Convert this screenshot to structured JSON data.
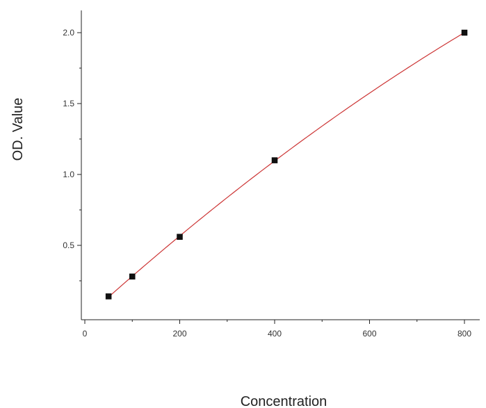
{
  "chart_data": {
    "type": "line",
    "title": "",
    "xlabel": "Concentration",
    "ylabel": "OD. Value",
    "xlim": [
      0,
      800
    ],
    "ylim": [
      0,
      2.0
    ],
    "x_ticks": [
      0,
      200,
      400,
      600,
      800
    ],
    "x_tick_labels": [
      "0",
      "200",
      "400",
      "600",
      "800"
    ],
    "y_ticks": [
      0.5,
      1.0,
      1.5,
      2.0
    ],
    "y_tick_labels": [
      "0.5",
      "1.0",
      "1.5",
      "2.0"
    ],
    "grid": false,
    "series": [
      {
        "points": [
          {
            "x": 50,
            "y": 0.14
          },
          {
            "x": 100,
            "y": 0.28
          },
          {
            "x": 200,
            "y": 0.56
          },
          {
            "x": 400,
            "y": 1.1
          },
          {
            "x": 800,
            "y": 2.0
          }
        ],
        "line_color": "#cc3333",
        "marker_color": "#111111",
        "marker": "square"
      }
    ]
  }
}
